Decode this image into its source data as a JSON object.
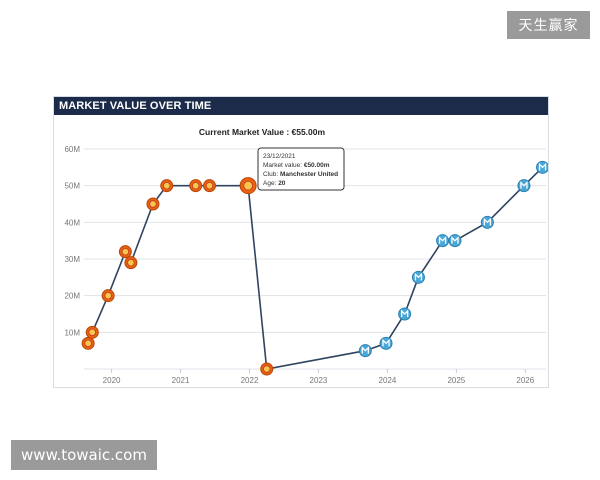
{
  "watermarks": {
    "top_right": "天生赢家",
    "bottom_left": "www.towaic.com"
  },
  "panel": {
    "header": "MARKET VALUE OVER TIME"
  },
  "chart_data": {
    "type": "line",
    "title": "Current Market Value : €55.00m",
    "xlabel": "",
    "ylabel": "",
    "x_ticks": [
      "2020",
      "2021",
      "2022",
      "2023",
      "2024",
      "2025",
      "2026"
    ],
    "y_ticks": [
      "10M",
      "20M",
      "30M",
      "40M",
      "50M",
      "60M"
    ],
    "xlim": [
      2019.6,
      2026.3
    ],
    "ylim": [
      0,
      60
    ],
    "grid": true,
    "line_color": "#2e4460",
    "series": [
      {
        "points": [
          {
            "x": 2019.66,
            "y": 7,
            "club": "Manchester United"
          },
          {
            "x": 2019.72,
            "y": 10,
            "club": "Manchester United"
          },
          {
            "x": 2019.95,
            "y": 20,
            "club": "Manchester United"
          },
          {
            "x": 2020.2,
            "y": 32,
            "club": "Manchester United"
          },
          {
            "x": 2020.28,
            "y": 29,
            "club": "Manchester United"
          },
          {
            "x": 2020.6,
            "y": 45,
            "club": "Manchester United"
          },
          {
            "x": 2020.8,
            "y": 50,
            "club": "Manchester United"
          },
          {
            "x": 2021.22,
            "y": 50,
            "club": "Manchester United"
          },
          {
            "x": 2021.42,
            "y": 50,
            "club": "Manchester United"
          },
          {
            "x": 2021.98,
            "y": 50,
            "club": "Manchester United"
          },
          {
            "x": 2022.25,
            "y": 0,
            "club": "Manchester United"
          },
          {
            "x": 2023.68,
            "y": 5,
            "club": "Marseille"
          },
          {
            "x": 2023.98,
            "y": 7,
            "club": "Marseille"
          },
          {
            "x": 2024.25,
            "y": 15,
            "club": "Marseille"
          },
          {
            "x": 2024.45,
            "y": 25,
            "club": "Marseille"
          },
          {
            "x": 2024.8,
            "y": 35,
            "club": "Marseille"
          },
          {
            "x": 2024.98,
            "y": 35,
            "club": "Marseille"
          },
          {
            "x": 2025.45,
            "y": 40,
            "club": "Marseille"
          },
          {
            "x": 2025.98,
            "y": 50,
            "club": "Marseille"
          },
          {
            "x": 2026.25,
            "y": 55,
            "club": "Marseille"
          }
        ]
      }
    ],
    "club_colors": {
      "Manchester United": "#e8620f",
      "Marseille": "#4aa8d8"
    },
    "tooltip": {
      "point_index": 9,
      "date": "23/12/2021",
      "market_value_label": "Market value:",
      "market_value": "€50.00m",
      "club_label": "Club:",
      "club": "Manchester United",
      "age_label": "Age:",
      "age": "20"
    }
  }
}
